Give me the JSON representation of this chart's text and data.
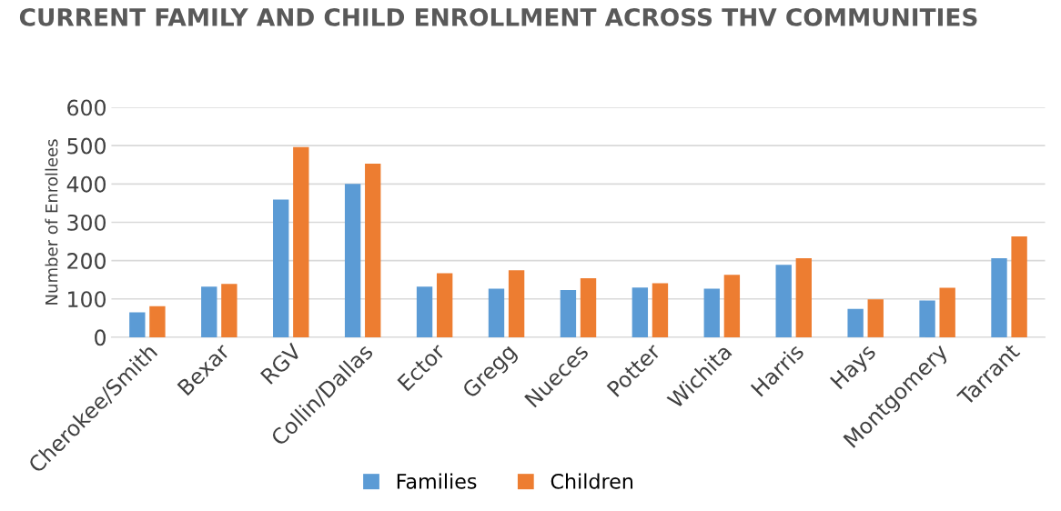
{
  "chart_data": {
    "type": "bar",
    "title": "CURRENT FAMILY AND CHILD ENROLLMENT ACROSS THV COMMUNITIES",
    "ylabel": "Number of Enrollees",
    "categories": [
      "Cherokee/Smith",
      "Bexar",
      "RGV",
      "Collin/Dallas",
      "Ector",
      "Gregg",
      "Nueces",
      "Potter",
      "Wichita",
      "Harris",
      "Hays",
      "Montgomery",
      "Tarrant"
    ],
    "series": [
      {
        "name": "Families",
        "color": "#5b9bd5",
        "values": [
          65,
          132,
          359,
          400,
          132,
          127,
          123,
          130,
          127,
          189,
          74,
          96,
          206
        ]
      },
      {
        "name": "Children",
        "color": "#ed7d31",
        "values": [
          81,
          139,
          496,
          453,
          167,
          175,
          154,
          141,
          163,
          206,
          99,
          129,
          263
        ]
      }
    ],
    "ylim": [
      0,
      600
    ],
    "yticks": [
      0,
      100,
      200,
      300,
      400,
      500,
      600
    ],
    "grid": "y",
    "legend": "bottom"
  }
}
